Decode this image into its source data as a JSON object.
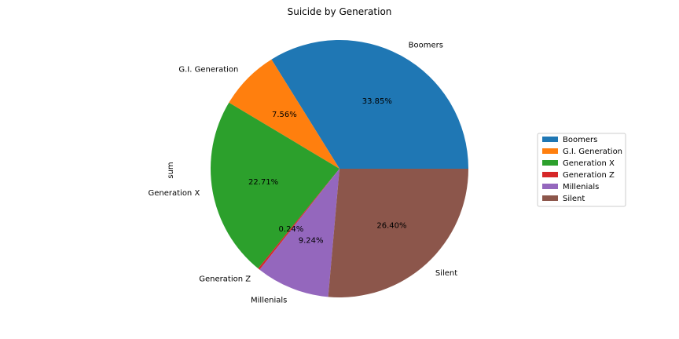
{
  "chart_data": {
    "type": "pie",
    "title": "Suicide by Generation",
    "ylabel": "sum",
    "categories": [
      "Boomers",
      "G.I. Generation",
      "Generation X",
      "Generation Z",
      "Millenials",
      "Silent"
    ],
    "values": [
      33.85,
      7.56,
      22.71,
      0.24,
      9.24,
      26.4
    ],
    "pct_labels": [
      "33.85%",
      "7.56%",
      "22.71%",
      "0.24%",
      "9.24%",
      "26.40%"
    ],
    "colors": [
      "#1f77b4",
      "#ff7f0e",
      "#2ca02c",
      "#d62728",
      "#9467bd",
      "#8c564b"
    ],
    "legend": {
      "placement": "right",
      "entries": [
        "Boomers",
        "G.I. Generation",
        "Generation X",
        "Generation Z",
        "Millenials",
        "Silent"
      ]
    }
  }
}
